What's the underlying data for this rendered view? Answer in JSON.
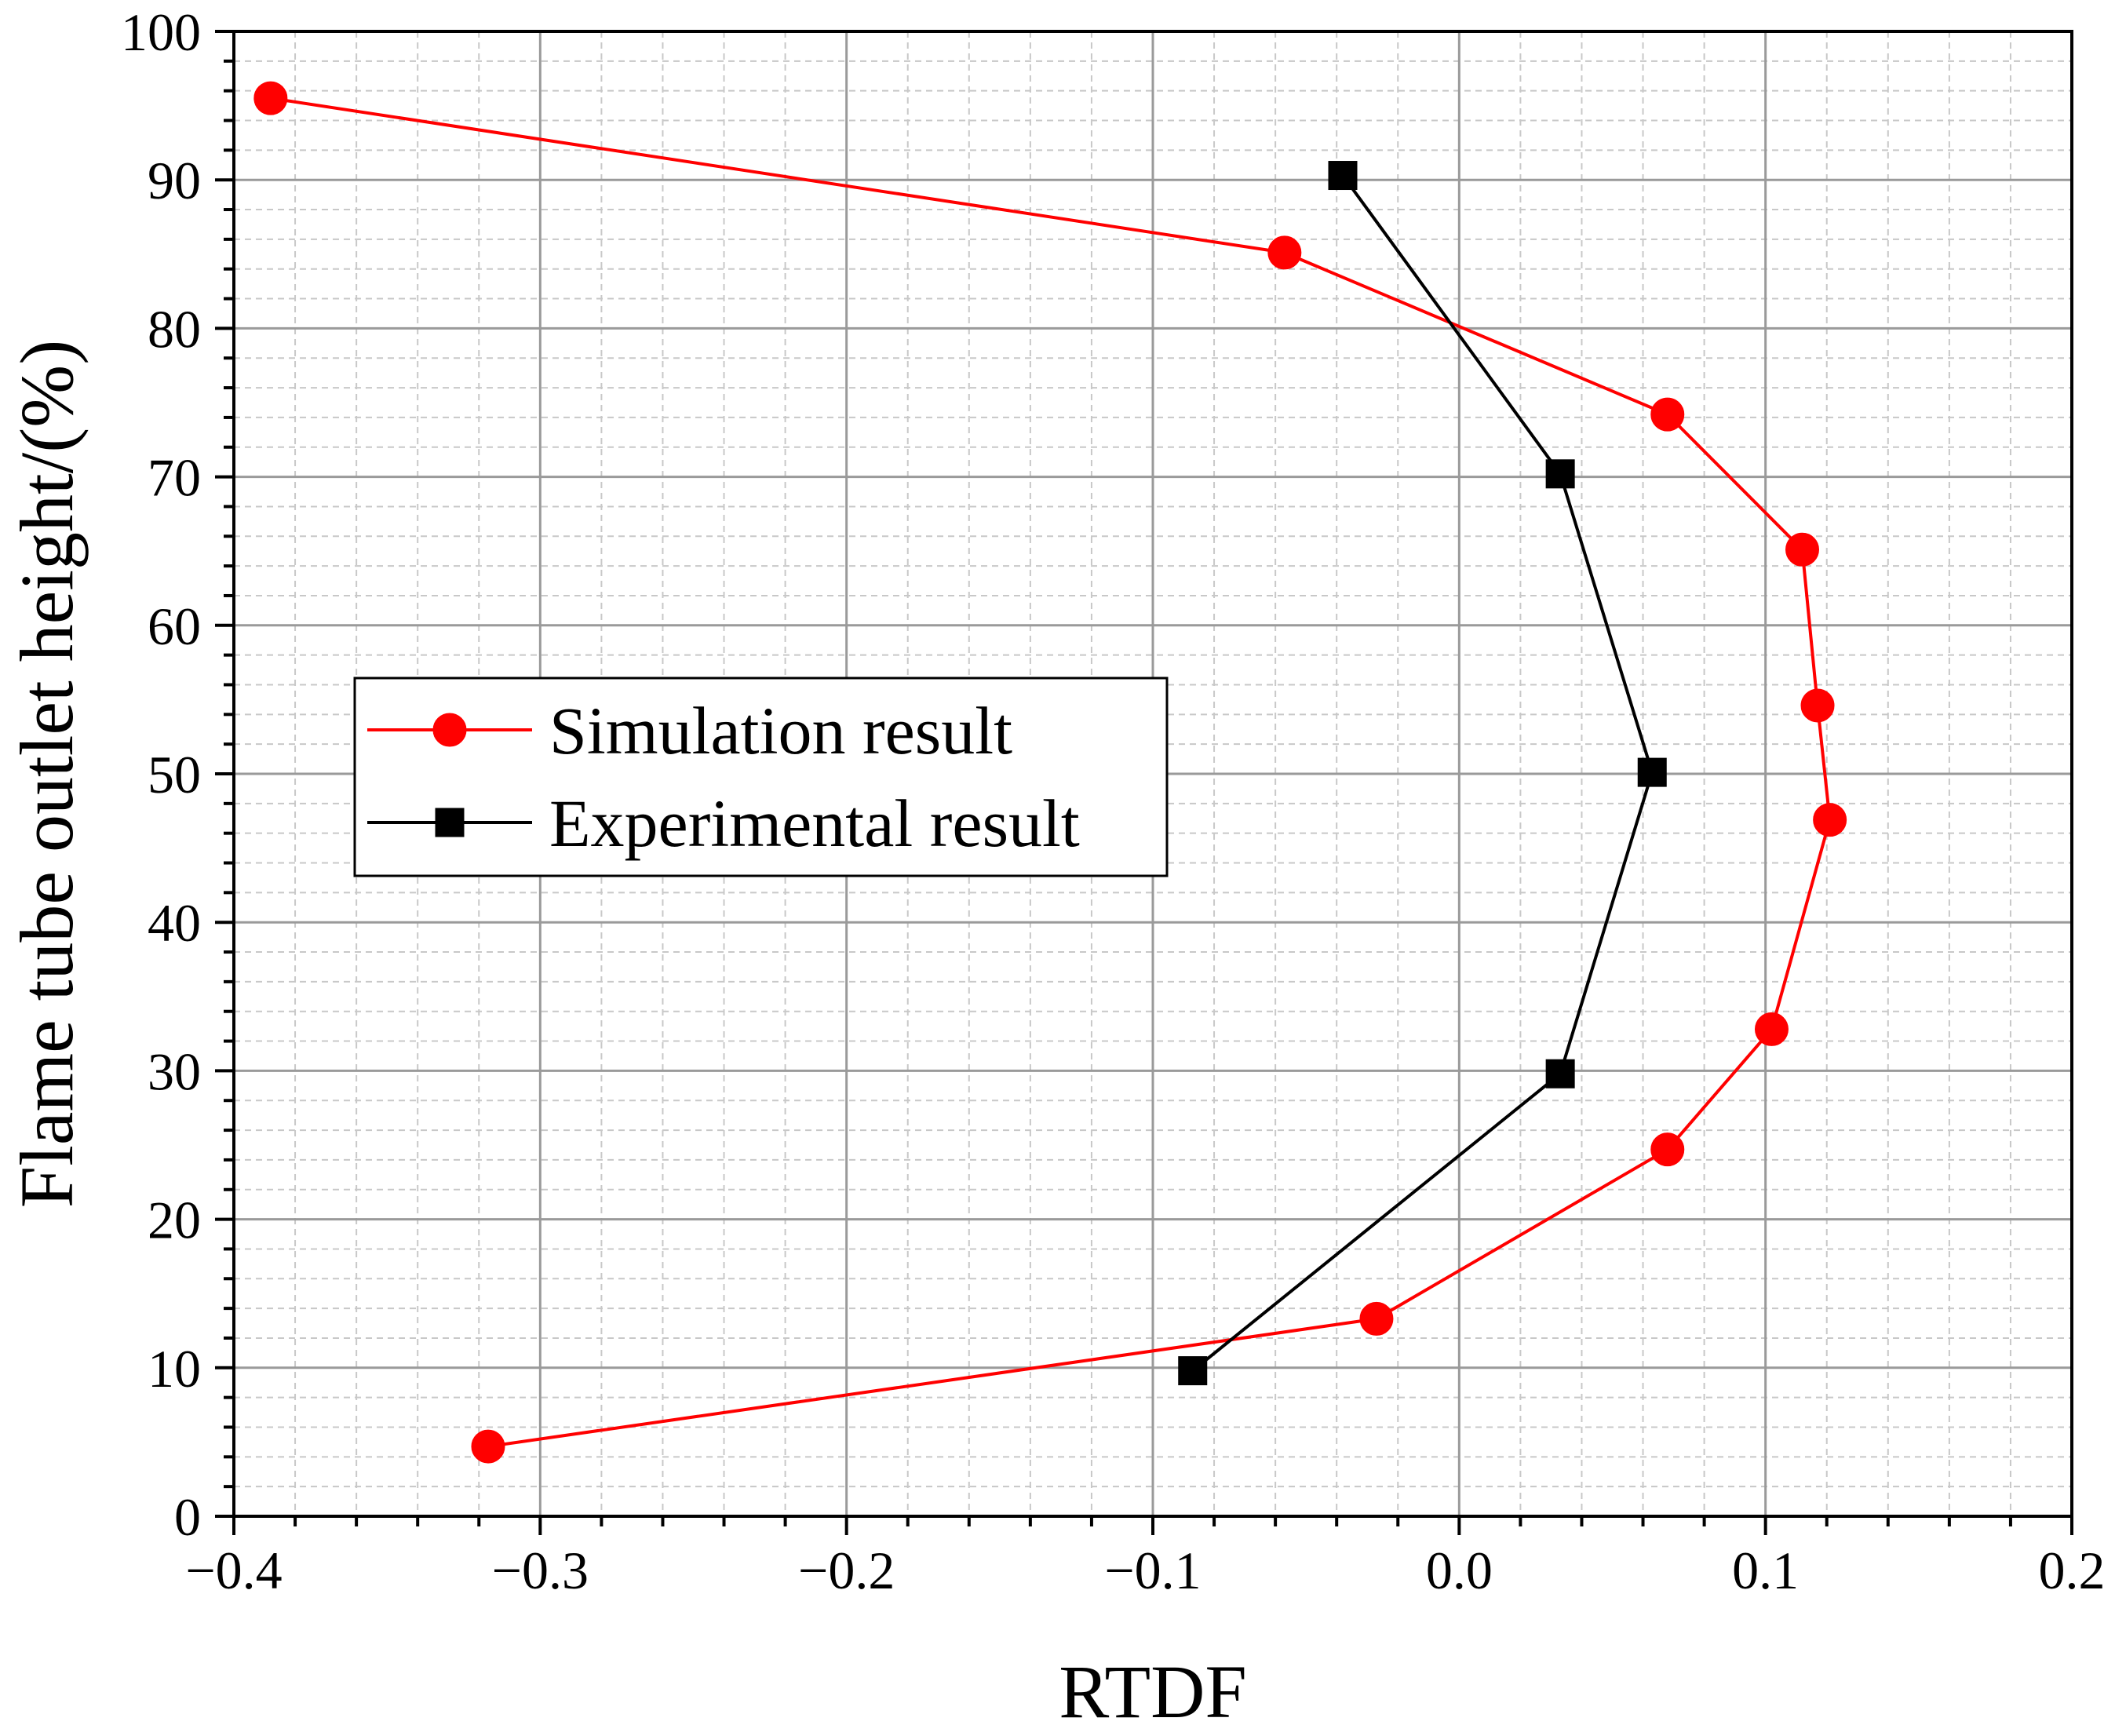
{
  "chart_data": {
    "type": "line",
    "title": "",
    "xlabel": "RTDF",
    "ylabel": "Flame tube outlet height/(%)",
    "xlim": [
      -0.4,
      0.2
    ],
    "ylim": [
      0,
      100
    ],
    "x_ticks": [
      -0.4,
      -0.3,
      -0.2,
      -0.1,
      0.0,
      0.1,
      0.2
    ],
    "x_tick_labels": [
      "−0.4",
      "−0.3",
      "−0.2",
      "−0.1",
      "0.0",
      "0.1",
      "0.2"
    ],
    "y_ticks": [
      0,
      10,
      20,
      30,
      40,
      50,
      60,
      70,
      80,
      90,
      100
    ],
    "y_tick_labels": [
      "0",
      "10",
      "20",
      "30",
      "40",
      "50",
      "60",
      "70",
      "80",
      "90",
      "100"
    ],
    "grid": true,
    "legend_position": "middle-left",
    "series": [
      {
        "name": "Simulation result",
        "color": "#ff0000",
        "marker": "circle",
        "points": [
          {
            "x": -0.388,
            "y": 95.5
          },
          {
            "x": -0.057,
            "y": 85.1
          },
          {
            "x": 0.068,
            "y": 74.2
          },
          {
            "x": 0.112,
            "y": 65.1
          },
          {
            "x": 0.117,
            "y": 54.6
          },
          {
            "x": 0.121,
            "y": 46.9
          },
          {
            "x": 0.102,
            "y": 32.8
          },
          {
            "x": 0.068,
            "y": 24.7
          },
          {
            "x": -0.027,
            "y": 13.3
          },
          {
            "x": -0.317,
            "y": 4.7
          }
        ]
      },
      {
        "name": "Experimental result",
        "color": "#000000",
        "marker": "square",
        "points": [
          {
            "x": -0.038,
            "y": 90.3
          },
          {
            "x": 0.033,
            "y": 70.2
          },
          {
            "x": 0.063,
            "y": 50.1
          },
          {
            "x": 0.033,
            "y": 29.8
          },
          {
            "x": -0.087,
            "y": 9.8
          }
        ]
      }
    ]
  }
}
